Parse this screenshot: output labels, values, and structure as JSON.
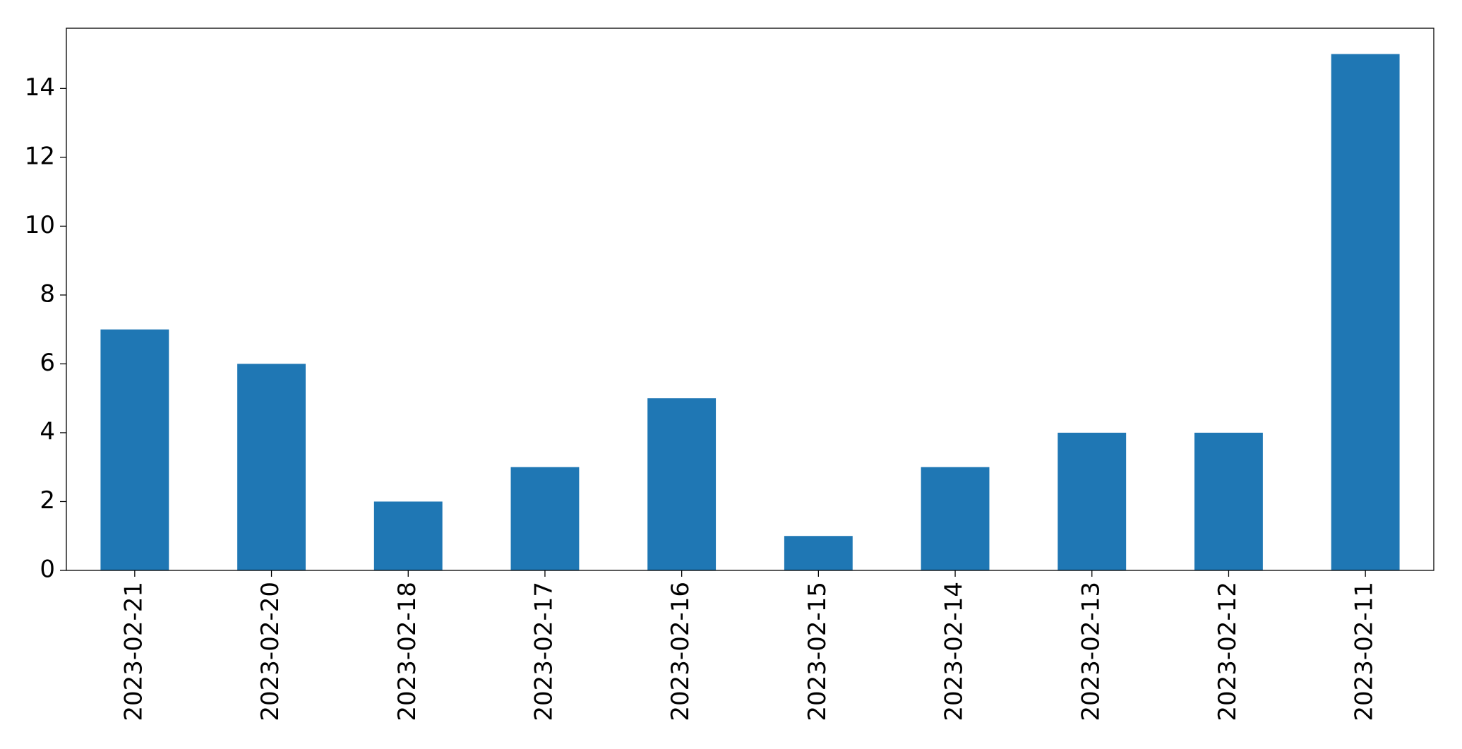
{
  "chart_data": {
    "type": "bar",
    "categories": [
      "2023-02-21",
      "2023-02-20",
      "2023-02-18",
      "2023-02-17",
      "2023-02-16",
      "2023-02-15",
      "2023-02-14",
      "2023-02-13",
      "2023-02-12",
      "2023-02-11"
    ],
    "values": [
      7,
      6,
      2,
      3,
      5,
      1,
      3,
      4,
      4,
      15
    ],
    "color": "#1f77b4",
    "ylim": [
      0,
      15.75
    ],
    "yticks": [
      0,
      2,
      4,
      6,
      8,
      10,
      12,
      14
    ],
    "grid": false
  }
}
